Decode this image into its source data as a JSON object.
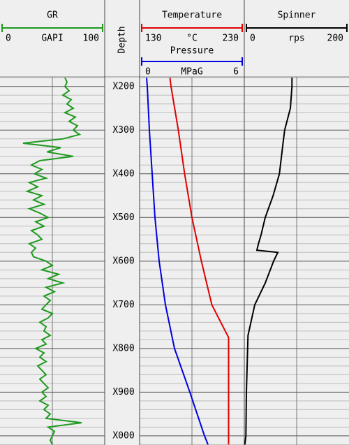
{
  "chart_data": [
    {
      "type": "axis",
      "title": "Depth",
      "ylim": [
        178,
        1021
      ],
      "yticks": [
        {
          "value": 200,
          "label": "X200"
        },
        {
          "value": 300,
          "label": "X300"
        },
        {
          "value": 400,
          "label": "X400"
        },
        {
          "value": 500,
          "label": "X500"
        },
        {
          "value": 600,
          "label": "X600"
        },
        {
          "value": 700,
          "label": "X700"
        },
        {
          "value": 800,
          "label": "X800"
        },
        {
          "value": 900,
          "label": "X900"
        },
        {
          "value": 1000,
          "label": "X000"
        }
      ],
      "minor_yticks": [
        180,
        220,
        240,
        260,
        280,
        320,
        340,
        360,
        380,
        420,
        440,
        460,
        480,
        520,
        540,
        560,
        580,
        620,
        640,
        660,
        680,
        720,
        740,
        760,
        780,
        820,
        840,
        860,
        880,
        920,
        940,
        960,
        980,
        1020
      ]
    },
    {
      "type": "line",
      "title": "GR",
      "xlabel": "GAPI",
      "color": "#1f9a1f",
      "xlim": [
        0,
        100
      ],
      "xticks": [
        0,
        100
      ],
      "depth": [
        180,
        190,
        200,
        210,
        220,
        230,
        240,
        250,
        260,
        270,
        280,
        290,
        300,
        310,
        320,
        330,
        340,
        350,
        360,
        370,
        380,
        390,
        400,
        410,
        420,
        430,
        440,
        450,
        460,
        470,
        480,
        490,
        500,
        510,
        520,
        530,
        540,
        550,
        560,
        570,
        580,
        590,
        600,
        610,
        620,
        630,
        640,
        650,
        660,
        670,
        680,
        690,
        700,
        710,
        720,
        730,
        740,
        750,
        760,
        770,
        780,
        790,
        800,
        810,
        820,
        830,
        840,
        850,
        860,
        870,
        880,
        890,
        900,
        910,
        920,
        930,
        940,
        950,
        960,
        970,
        980,
        990,
        1000,
        1010,
        1020
      ],
      "values": [
        62,
        64,
        62,
        66,
        60,
        68,
        64,
        70,
        62,
        72,
        66,
        74,
        70,
        76,
        60,
        22,
        58,
        45,
        70,
        38,
        30,
        40,
        33,
        44,
        28,
        36,
        26,
        40,
        32,
        42,
        28,
        38,
        46,
        34,
        42,
        30,
        36,
        40,
        28,
        34,
        30,
        32,
        44,
        50,
        40,
        56,
        46,
        60,
        44,
        52,
        42,
        48,
        44,
        40,
        50,
        46,
        38,
        44,
        42,
        48,
        40,
        44,
        34,
        42,
        38,
        44,
        36,
        40,
        44,
        38,
        42,
        46,
        40,
        44,
        38,
        46,
        42,
        48,
        44,
        78,
        46,
        52,
        50,
        48,
        50
      ]
    },
    {
      "type": "line",
      "title": "Temperature",
      "xlabel": "°C",
      "color": "#e00000",
      "xlim": [
        130,
        230
      ],
      "xticks": [
        130,
        230
      ],
      "depth": [
        180,
        200,
        300,
        400,
        500,
        600,
        700,
        775,
        1020
      ],
      "values": [
        159,
        160,
        167,
        173,
        180,
        189,
        199,
        215,
        215
      ]
    },
    {
      "type": "line",
      "title": "Pressure",
      "xlabel": "MPaG",
      "color": "#0000e0",
      "xlim": [
        0,
        6
      ],
      "xticks": [
        0,
        6
      ],
      "depth": [
        180,
        200,
        300,
        400,
        500,
        600,
        700,
        800,
        900,
        1000,
        1020
      ],
      "values": [
        0.4,
        0.44,
        0.56,
        0.72,
        0.88,
        1.12,
        1.48,
        2.0,
        2.88,
        3.72,
        3.92
      ]
    },
    {
      "type": "line",
      "title": "Spinner",
      "xlabel": "rps",
      "color": "#000000",
      "xlim": [
        0,
        200
      ],
      "xticks": [
        0,
        200
      ],
      "depth": [
        180,
        200,
        250,
        300,
        350,
        400,
        450,
        500,
        540,
        560,
        575,
        580,
        600,
        650,
        700,
        770,
        900,
        1000,
        1020
      ],
      "values": [
        91,
        91,
        88,
        77,
        72,
        67,
        55,
        40,
        32,
        27,
        24,
        64,
        56,
        40,
        20,
        7,
        4,
        3,
        1
      ]
    }
  ]
}
